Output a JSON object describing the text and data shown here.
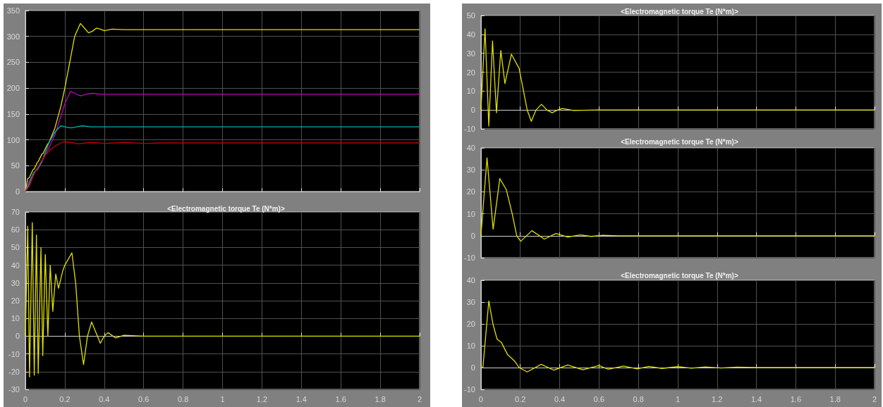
{
  "chart_data": [
    {
      "type": "line",
      "grid": true,
      "tick_labels": "y",
      "xlim": [
        0,
        2
      ],
      "xticks": [
        0,
        0.2,
        0.4,
        0.6,
        0.8,
        1,
        1.2,
        1.4,
        1.6,
        1.8,
        2
      ],
      "ylim": [
        0,
        350
      ],
      "yticks": [
        0,
        50,
        100,
        150,
        200,
        250,
        300,
        350
      ],
      "series": [
        {
          "color": "#e0e000",
          "x": [
            0,
            0.012,
            0.02,
            0.03,
            0.038,
            0.045,
            0.06,
            0.065,
            0.083,
            0.09,
            0.11,
            0.12,
            0.15,
            0.18,
            0.2,
            0.22,
            0.25,
            0.279,
            0.3,
            0.32,
            0.34,
            0.36,
            0.38,
            0.4,
            0.44,
            0.5,
            0.6,
            2
          ],
          "values": [
            0,
            25,
            27,
            35,
            42,
            44,
            56,
            58,
            72,
            74,
            90,
            95,
            123,
            165,
            200,
            240,
            300,
            325,
            316,
            307,
            310,
            316,
            314,
            311,
            314,
            313,
            313,
            313
          ]
        },
        {
          "color": "#c000c0",
          "x": [
            0,
            0.02,
            0.05,
            0.08,
            0.1,
            0.12,
            0.15,
            0.18,
            0.2,
            0.229,
            0.25,
            0.28,
            0.31,
            0.34,
            0.38,
            0.45,
            2
          ],
          "values": [
            0,
            20,
            40,
            55,
            70,
            85,
            110,
            145,
            170,
            194,
            190,
            185,
            188,
            190,
            188,
            188,
            188
          ]
        },
        {
          "color": "#00b0b0",
          "x": [
            0,
            0.02,
            0.04,
            0.06,
            0.08,
            0.1,
            0.12,
            0.15,
            0.179,
            0.2,
            0.23,
            0.26,
            0.29,
            0.33,
            0.4,
            2
          ],
          "values": [
            0,
            15,
            35,
            42,
            55,
            75,
            95,
            115,
            127,
            125,
            123,
            125,
            127,
            125,
            125,
            125
          ]
        },
        {
          "color": "#c00000",
          "x": [
            0,
            0.02,
            0.04,
            0.06,
            0.08,
            0.1,
            0.13,
            0.16,
            0.193,
            0.23,
            0.27,
            0.33,
            0.41,
            0.5,
            0.6,
            0.7,
            0.8,
            2
          ],
          "values": [
            0,
            10,
            30,
            45,
            58,
            70,
            82,
            90,
            96,
            95,
            92,
            95,
            93,
            95,
            93,
            94,
            94,
            94
          ]
        }
      ]
    },
    {
      "type": "line",
      "title": "<Electromagnetic torque Te (N*m)>",
      "grid": true,
      "xlim": [
        0,
        2
      ],
      "xticks": [
        0,
        0.2,
        0.4,
        0.6,
        0.8,
        1,
        1.2,
        1.4,
        1.6,
        1.8,
        2
      ],
      "ylim": [
        -30,
        70
      ],
      "yticks": [
        -30,
        -20,
        -10,
        0,
        10,
        20,
        30,
        40,
        50,
        60,
        70
      ],
      "series": [
        {
          "color": "#e0e000",
          "x": [
            0,
            0.012,
            0.021,
            0.035,
            0.045,
            0.056,
            0.065,
            0.079,
            0.088,
            0.101,
            0.114,
            0.126,
            0.139,
            0.154,
            0.168,
            0.19,
            0.2,
            0.236,
            0.255,
            0.274,
            0.295,
            0.315,
            0.336,
            0.358,
            0.38,
            0.4,
            0.419,
            0.458,
            0.5,
            0.6,
            2
          ],
          "values": [
            0,
            62,
            -23,
            64,
            -22,
            57,
            -21,
            50,
            -11,
            46,
            0,
            40,
            14,
            35,
            27,
            37,
            40,
            47,
            30,
            0,
            -16,
            0,
            8,
            2,
            -4,
            0,
            2,
            -1,
            0.5,
            0,
            0
          ]
        }
      ]
    },
    {
      "type": "line",
      "title": "<Electromagnetic torque Te (N*m)>",
      "grid": true,
      "tick_labels": "y",
      "xlim": [
        0,
        2
      ],
      "xticks": [
        0,
        0.2,
        0.4,
        0.6,
        0.8,
        1,
        1.2,
        1.4,
        1.6,
        1.8,
        2
      ],
      "ylim": [
        -10,
        50
      ],
      "yticks": [
        -10,
        0,
        10,
        20,
        30,
        40,
        50
      ],
      "series": [
        {
          "color": "#e0e000",
          "x": [
            0,
            0.021,
            0.04,
            0.059,
            0.079,
            0.101,
            0.122,
            0.155,
            0.194,
            0.235,
            0.256,
            0.28,
            0.308,
            0.335,
            0.362,
            0.39,
            0.414,
            0.47,
            0.6,
            2
          ],
          "values": [
            0,
            43,
            -8.5,
            36.5,
            -1.5,
            31.5,
            14,
            29.5,
            22,
            0,
            -6,
            0,
            3,
            0,
            -1.5,
            0,
            0.8,
            -0.3,
            0,
            0
          ]
        }
      ]
    },
    {
      "type": "line",
      "title": "<Electromagnetic torque Te (N*m)>",
      "grid": true,
      "tick_labels": "y",
      "xlim": [
        0,
        2
      ],
      "xticks": [
        0,
        0.2,
        0.4,
        0.6,
        0.8,
        1,
        1.2,
        1.4,
        1.6,
        1.8,
        2
      ],
      "ylim": [
        -10,
        40
      ],
      "yticks": [
        -10,
        0,
        10,
        20,
        30,
        40
      ],
      "series": [
        {
          "color": "#e0e000",
          "x": [
            0,
            0.031,
            0.062,
            0.096,
            0.129,
            0.159,
            0.182,
            0.202,
            0.259,
            0.322,
            0.381,
            0.441,
            0.504,
            0.56,
            0.62,
            0.7,
            2
          ],
          "values": [
            0,
            35.5,
            3,
            26,
            21,
            10,
            0,
            -2.5,
            2.3,
            -1.5,
            1,
            -0.6,
            0.4,
            -0.3,
            0.2,
            0,
            0
          ]
        }
      ]
    },
    {
      "type": "line",
      "title": "<Electromagnetic torque Te (N*m)>",
      "grid": true,
      "xlim": [
        0,
        2
      ],
      "xticks": [
        0,
        0.2,
        0.4,
        0.6,
        0.8,
        1,
        1.2,
        1.4,
        1.6,
        1.8,
        2
      ],
      "ylim": [
        -10,
        40
      ],
      "yticks": [
        -10,
        0,
        10,
        20,
        30,
        40
      ],
      "series": [
        {
          "color": "#e0e000",
          "x": [
            0,
            0.01,
            0.04,
            0.061,
            0.082,
            0.104,
            0.135,
            0.171,
            0.194,
            0.235,
            0.306,
            0.371,
            0.441,
            0.518,
            0.6,
            0.647,
            0.724,
            0.794,
            0.853,
            0.92,
            1,
            1.07,
            1.14,
            1.22,
            1.3,
            1.4,
            1.5,
            2
          ],
          "values": [
            0,
            0,
            30.5,
            20,
            13,
            11.5,
            6,
            3,
            0,
            -2,
            1.5,
            -1.2,
            1.2,
            -1,
            0.9,
            -0.8,
            0.7,
            -0.6,
            0.5,
            -0.4,
            0.4,
            -0.3,
            0.3,
            -0.2,
            0.2,
            0,
            0,
            0
          ]
        }
      ]
    }
  ]
}
